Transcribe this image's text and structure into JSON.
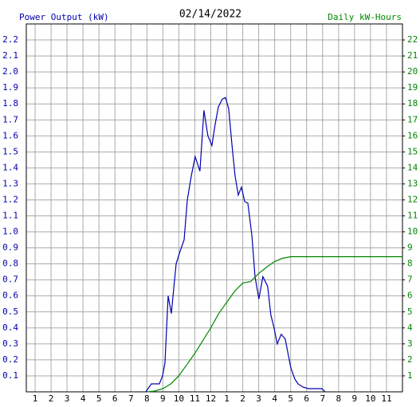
{
  "chart_data": {
    "type": "line",
    "title": "02/14/2022",
    "y_label": "Power Output (kW)",
    "y2_label": "Daily kW-Hours",
    "grid": true,
    "xlim": [
      0.45,
      24
    ],
    "xticks": [
      1,
      2,
      3,
      4,
      5,
      6,
      7,
      8,
      9,
      10,
      11,
      12,
      {
        "value": 13,
        "label": "1"
      },
      {
        "value": 14,
        "label": "2"
      },
      {
        "value": 15,
        "label": "3"
      },
      {
        "value": 16,
        "label": "4"
      },
      {
        "value": 17,
        "label": "5"
      },
      {
        "value": 18,
        "label": "6"
      },
      {
        "value": 19,
        "label": "7"
      },
      {
        "value": 20,
        "label": "8"
      },
      {
        "value": 21,
        "label": "9"
      },
      {
        "value": 22,
        "label": "10"
      },
      {
        "value": 23,
        "label": "11"
      }
    ],
    "ylim": [
      0,
      2.3
    ],
    "yticks": [
      0.1,
      0.2,
      0.3,
      0.4,
      0.5,
      0.6,
      0.7,
      0.8,
      0.9,
      {
        "value": 1,
        "label": "1.0"
      },
      1.1,
      1.2,
      1.3,
      1.4,
      1.5,
      1.6,
      1.7,
      1.8,
      1.9,
      {
        "value": 2,
        "label": "2.0"
      },
      2.1,
      2.2
    ],
    "y2lim": [
      0,
      23
    ],
    "y2ticks": [
      1,
      2,
      3,
      4,
      5,
      6,
      7,
      8,
      9,
      10,
      11,
      12,
      13,
      14,
      15,
      16,
      17,
      18,
      19,
      20,
      21,
      22
    ],
    "series": [
      {
        "color": "#0000b0",
        "x": [
          7.93,
          8.28,
          8.78,
          8.98,
          9.13,
          9.33,
          9.53,
          9.83,
          10.08,
          10.33,
          10.53,
          10.78,
          11.02,
          11.32,
          11.57,
          11.82,
          12.07,
          12.27,
          12.47,
          12.72,
          12.92,
          13.12,
          13.32,
          13.52,
          13.72,
          13.92,
          14.12,
          14.32,
          14.57,
          14.77,
          15.01,
          15.26,
          15.56,
          15.76,
          15.96,
          16.16,
          16.41,
          16.66,
          17.01,
          17.26,
          17.46,
          17.76,
          18.11,
          18.96,
          19.16
        ],
        "values": [
          0,
          0.05,
          0.05,
          0.1,
          0.18,
          0.6,
          0.49,
          0.8,
          0.88,
          0.95,
          1.2,
          1.35,
          1.47,
          1.38,
          1.76,
          1.6,
          1.54,
          1.67,
          1.78,
          1.83,
          1.84,
          1.77,
          1.55,
          1.35,
          1.23,
          1.28,
          1.19,
          1.18,
          0.98,
          0.72,
          0.58,
          0.72,
          0.66,
          0.48,
          0.4,
          0.3,
          0.36,
          0.33,
          0.15,
          0.08,
          0.05,
          0.03,
          0.02,
          0.02,
          0
        ]
      },
      {
        "color": "#008800",
        "axis": "y2",
        "x": [
          8,
          8.5,
          9,
          9.5,
          10,
          10.5,
          11,
          11.5,
          12,
          12.5,
          13,
          13.5,
          14,
          14.5,
          15,
          15.5,
          16,
          16.5,
          17,
          24
        ],
        "values": [
          0,
          0.05,
          0.2,
          0.5,
          1.0,
          1.7,
          2.4,
          3.2,
          4.0,
          4.9,
          5.6,
          6.3,
          6.8,
          6.9,
          7.4,
          7.8,
          8.15,
          8.35,
          8.45,
          8.45
        ]
      }
    ]
  }
}
